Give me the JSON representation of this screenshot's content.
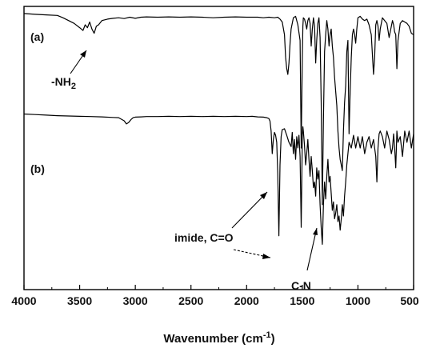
{
  "chart_data": {
    "type": "line",
    "title": "",
    "xlabel": "Wavenumber (cm",
    "xlabel_sup": "-1",
    "xlabel_tail": ")",
    "ylabel": "",
    "xlim": [
      4000,
      500
    ],
    "x_reversed": true,
    "ylim": [
      0,
      1
    ],
    "x_ticks": [
      4000,
      3500,
      3000,
      2500,
      2000,
      1500,
      1000,
      500
    ],
    "x_tick_labels": [
      "4000",
      "3500",
      "3000",
      "2500",
      "2000",
      "1500",
      "1000",
      "500"
    ],
    "grid": false,
    "legend": "none",
    "series": [
      {
        "label": "(a)",
        "x": [
          4000,
          3900,
          3800,
          3700,
          3650,
          3600,
          3550,
          3500,
          3470,
          3450,
          3430,
          3410,
          3390,
          3370,
          3350,
          3330,
          3300,
          3250,
          3200,
          3150,
          3100,
          3050,
          3000,
          2950,
          2900,
          2800,
          2700,
          2600,
          2500,
          2400,
          2300,
          2200,
          2100,
          2000,
          1900,
          1850,
          1800,
          1750,
          1720,
          1700,
          1680,
          1660,
          1650,
          1640,
          1630,
          1620,
          1610,
          1600,
          1580,
          1560,
          1540,
          1520,
          1510,
          1500,
          1495,
          1490,
          1480,
          1470,
          1460,
          1450,
          1440,
          1430,
          1420,
          1410,
          1400,
          1390,
          1380,
          1370,
          1360,
          1350,
          1340,
          1330,
          1320,
          1310,
          1300,
          1290,
          1280,
          1270,
          1260,
          1250,
          1240,
          1230,
          1220,
          1210,
          1200,
          1190,
          1180,
          1170,
          1160,
          1150,
          1140,
          1130,
          1120,
          1110,
          1100,
          1090,
          1080,
          1070,
          1060,
          1050,
          1040,
          1030,
          1020,
          1010,
          1000,
          980,
          960,
          940,
          920,
          900,
          880,
          860,
          850,
          840,
          830,
          820,
          810,
          800,
          780,
          760,
          740,
          720,
          700,
          690,
          680,
          670,
          660,
          650,
          640,
          620,
          600,
          580,
          560,
          540,
          520,
          500
        ],
        "y": [
          0.975,
          0.972,
          0.97,
          0.968,
          0.96,
          0.95,
          0.94,
          0.925,
          0.915,
          0.935,
          0.925,
          0.945,
          0.92,
          0.905,
          0.93,
          0.935,
          0.95,
          0.955,
          0.958,
          0.96,
          0.957,
          0.962,
          0.958,
          0.962,
          0.963,
          0.962,
          0.963,
          0.962,
          0.963,
          0.962,
          0.96,
          0.962,
          0.963,
          0.962,
          0.962,
          0.96,
          0.962,
          0.96,
          0.962,
          0.955,
          0.945,
          0.9,
          0.82,
          0.78,
          0.76,
          0.8,
          0.87,
          0.92,
          0.96,
          0.965,
          0.935,
          0.88,
          0.5,
          0.82,
          0.93,
          0.96,
          0.955,
          0.94,
          0.92,
          0.95,
          0.96,
          0.94,
          0.86,
          0.92,
          0.96,
          0.93,
          0.8,
          0.88,
          0.94,
          0.96,
          0.89,
          0.66,
          0.3,
          0.6,
          0.84,
          0.9,
          0.95,
          0.92,
          0.86,
          0.9,
          0.92,
          0.86,
          0.82,
          0.75,
          0.7,
          0.65,
          0.56,
          0.5,
          0.46,
          0.44,
          0.42,
          0.56,
          0.66,
          0.72,
          0.84,
          0.88,
          0.55,
          0.7,
          0.82,
          0.9,
          0.92,
          0.9,
          0.87,
          0.92,
          0.96,
          0.965,
          0.955,
          0.95,
          0.955,
          0.935,
          0.9,
          0.76,
          0.82,
          0.935,
          0.95,
          0.93,
          0.88,
          0.92,
          0.96,
          0.95,
          0.94,
          0.89,
          0.93,
          0.95,
          0.935,
          0.91,
          0.9,
          0.78,
          0.88,
          0.94,
          0.95,
          0.945,
          0.94,
          0.93,
          0.905,
          0.9
        ]
      },
      {
        "label": "(b)",
        "x": [
          4000,
          3900,
          3800,
          3700,
          3600,
          3500,
          3400,
          3300,
          3200,
          3150,
          3100,
          3080,
          3060,
          3040,
          3020,
          3000,
          2950,
          2900,
          2800,
          2700,
          2600,
          2500,
          2400,
          2300,
          2200,
          2100,
          2000,
          1950,
          1900,
          1850,
          1820,
          1800,
          1790,
          1780,
          1770,
          1760,
          1750,
          1740,
          1730,
          1720,
          1710,
          1700,
          1690,
          1680,
          1660,
          1640,
          1620,
          1600,
          1590,
          1580,
          1570,
          1560,
          1550,
          1540,
          1530,
          1520,
          1510,
          1500,
          1495,
          1490,
          1480,
          1470,
          1460,
          1450,
          1440,
          1430,
          1420,
          1410,
          1400,
          1390,
          1380,
          1370,
          1360,
          1350,
          1340,
          1330,
          1320,
          1310,
          1300,
          1290,
          1280,
          1270,
          1260,
          1250,
          1240,
          1230,
          1220,
          1210,
          1200,
          1190,
          1180,
          1170,
          1160,
          1150,
          1140,
          1130,
          1120,
          1110,
          1100,
          1090,
          1080,
          1060,
          1040,
          1020,
          1000,
          980,
          960,
          940,
          920,
          900,
          880,
          860,
          840,
          830,
          820,
          810,
          800,
          780,
          760,
          740,
          720,
          700,
          690,
          680,
          670,
          660,
          650,
          640,
          620,
          600,
          580,
          560,
          540,
          520,
          500
        ],
        "y": [
          0.62,
          0.618,
          0.616,
          0.614,
          0.613,
          0.612,
          0.611,
          0.61,
          0.608,
          0.607,
          0.596,
          0.585,
          0.59,
          0.6,
          0.607,
          0.609,
          0.61,
          0.611,
          0.611,
          0.612,
          0.611,
          0.612,
          0.611,
          0.612,
          0.611,
          0.612,
          0.611,
          0.612,
          0.61,
          0.609,
          0.607,
          0.604,
          0.595,
          0.56,
          0.48,
          0.53,
          0.555,
          0.545,
          0.52,
          0.41,
          0.19,
          0.44,
          0.54,
          0.565,
          0.568,
          0.545,
          0.52,
          0.505,
          0.555,
          0.48,
          0.53,
          0.46,
          0.54,
          0.5,
          0.545,
          0.47,
          0.22,
          0.54,
          0.575,
          0.56,
          0.51,
          0.44,
          0.48,
          0.53,
          0.46,
          0.4,
          0.47,
          0.42,
          0.36,
          0.38,
          0.33,
          0.43,
          0.39,
          0.42,
          0.3,
          0.22,
          0.16,
          0.3,
          0.38,
          0.32,
          0.4,
          0.46,
          0.38,
          0.4,
          0.34,
          0.28,
          0.31,
          0.25,
          0.27,
          0.3,
          0.24,
          0.26,
          0.21,
          0.25,
          0.3,
          0.26,
          0.33,
          0.38,
          0.44,
          0.48,
          0.52,
          0.5,
          0.545,
          0.5,
          0.54,
          0.5,
          0.54,
          0.48,
          0.52,
          0.54,
          0.5,
          0.53,
          0.47,
          0.38,
          0.5,
          0.55,
          0.56,
          0.54,
          0.5,
          0.56,
          0.53,
          0.48,
          0.5,
          0.55,
          0.5,
          0.43,
          0.56,
          0.52,
          0.54,
          0.47,
          0.56,
          0.52,
          0.56,
          0.5,
          0.55
        ]
      }
    ],
    "annotations": [
      {
        "text": "-NH",
        "sub": "2"
      },
      {
        "text": "imide, C=O"
      },
      {
        "text": "C-N"
      }
    ]
  }
}
